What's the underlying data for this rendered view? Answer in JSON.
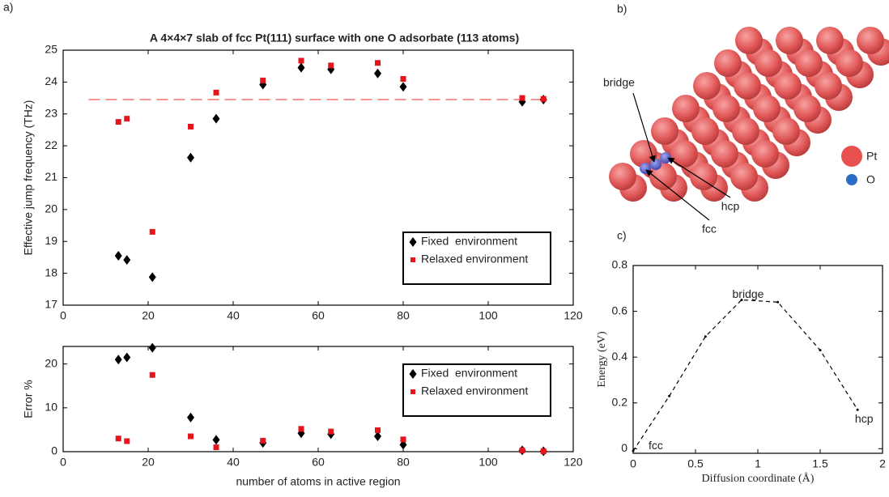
{
  "panel_labels": [
    "a)",
    "b)",
    "c)"
  ],
  "diagram": {
    "sites": [
      "bridge",
      "hcp",
      "fcc"
    ],
    "legend": [
      "Pt",
      "O"
    ]
  },
  "chart_data": [
    {
      "type": "scatter",
      "title": "A 4×4×7 slab of fcc Pt(111) surface with one O adsorbate (113 atoms)",
      "x": [
        13,
        15,
        21,
        30,
        36,
        47,
        56,
        63,
        74,
        80,
        108,
        113
      ],
      "series": [
        {
          "name": "Fixed  environment",
          "marker": "diamond",
          "color": "#000000",
          "values": [
            18.55,
            18.42,
            17.88,
            21.63,
            22.85,
            23.92,
            24.45,
            24.4,
            24.27,
            23.85,
            23.38,
            23.45
          ]
        },
        {
          "name": "Relaxed environment",
          "marker": "square",
          "color": "#e8141b",
          "values": [
            22.75,
            22.85,
            19.3,
            22.6,
            23.67,
            24.05,
            24.67,
            24.52,
            24.6,
            24.1,
            23.5,
            23.47
          ]
        }
      ],
      "hline": {
        "y": 23.45,
        "color": "#f07070"
      },
      "xlim": [
        0,
        120
      ],
      "xticks": [
        0,
        20,
        40,
        60,
        80,
        100,
        120
      ],
      "ylim": [
        17,
        25
      ],
      "yticks": [
        17,
        18,
        19,
        20,
        21,
        22,
        23,
        24,
        25
      ],
      "ylabel": "Effective jump frequency (THz)",
      "legend": "lower right"
    },
    {
      "type": "scatter",
      "x": [
        13,
        15,
        21,
        30,
        36,
        47,
        56,
        63,
        74,
        80,
        108,
        113
      ],
      "series": [
        {
          "name": "Fixed  environment",
          "marker": "diamond",
          "color": "#000000",
          "values": [
            21,
            21.5,
            23.7,
            7.8,
            2.7,
            2.0,
            4.2,
            4.0,
            3.5,
            1.6,
            0.3,
            0.1
          ]
        },
        {
          "name": "Relaxed environment",
          "marker": "square",
          "color": "#e8141b",
          "values": [
            3.0,
            2.4,
            17.5,
            3.5,
            1.0,
            2.5,
            5.2,
            4.6,
            4.9,
            2.8,
            0.3,
            0.1
          ]
        }
      ],
      "xlim": [
        0,
        120
      ],
      "xticks": [
        0,
        20,
        40,
        60,
        80,
        100,
        120
      ],
      "ylim": [
        0,
        24
      ],
      "yticks": [
        0,
        10,
        20
      ],
      "xlabel": "number of atoms in active region",
      "ylabel": "Error %",
      "legend": "upper right"
    },
    {
      "type": "line",
      "color": "#000000",
      "x": [
        0,
        0.29,
        0.58,
        0.87,
        1.16,
        1.5,
        1.8
      ],
      "values": [
        -0.01,
        0.23,
        0.49,
        0.65,
        0.64,
        0.43,
        0.17
      ],
      "point_labels": [
        "fcc",
        null,
        null,
        "bridge",
        null,
        null,
        "hcp"
      ],
      "xlim": [
        0,
        2
      ],
      "xticks": [
        0,
        0.5,
        1,
        1.5,
        2
      ],
      "ylim": [
        -0.02,
        0.8
      ],
      "yticks": [
        0,
        0.2,
        0.4,
        0.6,
        0.8
      ],
      "xlabel": "Diffusion coordinate (Å)",
      "ylabel": "Energy (eV)"
    }
  ]
}
